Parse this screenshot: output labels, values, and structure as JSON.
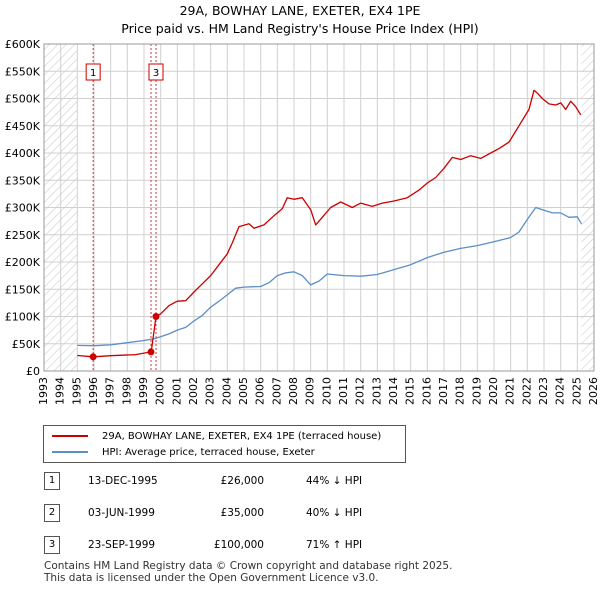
{
  "header": {
    "title": "29A, BOWHAY LANE, EXETER, EX4 1PE",
    "subtitle": "Price paid vs. HM Land Registry's House Price Index (HPI)"
  },
  "colors": {
    "property": "#cc0000",
    "hpi": "#5b8fc8",
    "marker_line": "#dd3333",
    "grid": "#d0d0d0",
    "hatch": "#cccccc"
  },
  "chart_data": {
    "type": "line",
    "xlim": [
      1993,
      2026
    ],
    "ylim": [
      0,
      600000
    ],
    "yticks": [
      0,
      50000,
      100000,
      150000,
      200000,
      250000,
      300000,
      350000,
      400000,
      450000,
      500000,
      550000,
      600000
    ],
    "ytick_labels": [
      "£0",
      "£50K",
      "£100K",
      "£150K",
      "£200K",
      "£250K",
      "£300K",
      "£350K",
      "£400K",
      "£450K",
      "£500K",
      "£550K",
      "£600K"
    ],
    "xticks": [
      1993,
      1994,
      1995,
      1996,
      1997,
      1998,
      1999,
      2000,
      2001,
      2002,
      2003,
      2004,
      2005,
      2006,
      2007,
      2008,
      2009,
      2010,
      2011,
      2012,
      2013,
      2014,
      2015,
      2016,
      2017,
      2018,
      2019,
      2020,
      2021,
      2022,
      2023,
      2024,
      2025,
      2026
    ],
    "xtick_labels": [
      "1993",
      "1994",
      "1995",
      "1996",
      "1997",
      "1998",
      "1999",
      "2000",
      "2001",
      "2002",
      "2003",
      "2004",
      "2005",
      "2006",
      "2007",
      "2008",
      "2009",
      "2010",
      "2011",
      "2012",
      "2013",
      "2014",
      "2015",
      "2016",
      "2017",
      "2018",
      "2019",
      "2020",
      "2021",
      "2022",
      "2023",
      "2024",
      "2025",
      "2026"
    ],
    "data_start": 1995.0,
    "data_end": 2025.25,
    "series": [
      {
        "name": "29A, BOWHAY LANE, EXETER, EX4 1PE (terraced house)",
        "color": "#cc0000",
        "points": [
          [
            1995.0,
            28500
          ],
          [
            1995.95,
            26000
          ],
          [
            1997.0,
            28000
          ],
          [
            1998.5,
            30000
          ],
          [
            1999.42,
            35000
          ],
          [
            1999.42,
            32000
          ],
          [
            1999.72,
            100000
          ],
          [
            2000.0,
            105000
          ],
          [
            2000.5,
            120000
          ],
          [
            2001.0,
            128000
          ],
          [
            2001.5,
            129000
          ],
          [
            2002.0,
            145000
          ],
          [
            2002.5,
            160000
          ],
          [
            2003.0,
            175000
          ],
          [
            2003.5,
            195000
          ],
          [
            2004.0,
            215000
          ],
          [
            2004.3,
            235000
          ],
          [
            2004.7,
            265000
          ],
          [
            2005.3,
            270000
          ],
          [
            2005.6,
            262000
          ],
          [
            2006.2,
            268000
          ],
          [
            2006.8,
            285000
          ],
          [
            2007.3,
            298000
          ],
          [
            2007.6,
            318000
          ],
          [
            2008.0,
            315000
          ],
          [
            2008.5,
            318000
          ],
          [
            2009.0,
            296000
          ],
          [
            2009.3,
            268000
          ],
          [
            2009.7,
            282000
          ],
          [
            2010.2,
            300000
          ],
          [
            2010.8,
            310000
          ],
          [
            2011.5,
            300000
          ],
          [
            2012.0,
            308000
          ],
          [
            2012.7,
            302000
          ],
          [
            2013.3,
            308000
          ],
          [
            2014.0,
            312000
          ],
          [
            2014.8,
            318000
          ],
          [
            2015.5,
            332000
          ],
          [
            2016.0,
            345000
          ],
          [
            2016.5,
            355000
          ],
          [
            2017.0,
            372000
          ],
          [
            2017.5,
            392000
          ],
          [
            2018.0,
            388000
          ],
          [
            2018.6,
            395000
          ],
          [
            2019.2,
            390000
          ],
          [
            2019.8,
            400000
          ],
          [
            2020.3,
            408000
          ],
          [
            2020.9,
            420000
          ],
          [
            2021.5,
            450000
          ],
          [
            2021.8,
            465000
          ],
          [
            2022.1,
            480000
          ],
          [
            2022.4,
            515000
          ],
          [
            2022.6,
            510000
          ],
          [
            2022.9,
            500000
          ],
          [
            2023.3,
            490000
          ],
          [
            2023.7,
            488000
          ],
          [
            2024.0,
            492000
          ],
          [
            2024.3,
            480000
          ],
          [
            2024.6,
            495000
          ],
          [
            2024.9,
            485000
          ],
          [
            2025.2,
            470000
          ]
        ]
      },
      {
        "name": "HPI: Average price, terraced house, Exeter",
        "color": "#5b8fc8",
        "points": [
          [
            1995.0,
            47000
          ],
          [
            1996.0,
            46500
          ],
          [
            1997.0,
            48000
          ],
          [
            1998.0,
            52000
          ],
          [
            1999.0,
            56000
          ],
          [
            1999.72,
            60000
          ],
          [
            2000.5,
            68000
          ],
          [
            2001.0,
            75000
          ],
          [
            2001.5,
            80000
          ],
          [
            2002.0,
            92000
          ],
          [
            2002.5,
            102000
          ],
          [
            2003.0,
            117000
          ],
          [
            2003.5,
            128000
          ],
          [
            2004.0,
            140000
          ],
          [
            2004.5,
            152000
          ],
          [
            2005.0,
            154000
          ],
          [
            2006.0,
            155000
          ],
          [
            2006.5,
            162000
          ],
          [
            2007.0,
            175000
          ],
          [
            2007.5,
            180000
          ],
          [
            2008.0,
            182000
          ],
          [
            2008.5,
            175000
          ],
          [
            2009.0,
            158000
          ],
          [
            2009.5,
            165000
          ],
          [
            2010.0,
            178000
          ],
          [
            2011.0,
            175000
          ],
          [
            2012.0,
            174000
          ],
          [
            2013.0,
            177000
          ],
          [
            2014.0,
            186000
          ],
          [
            2015.0,
            195000
          ],
          [
            2016.0,
            208000
          ],
          [
            2017.0,
            218000
          ],
          [
            2018.0,
            225000
          ],
          [
            2019.0,
            230000
          ],
          [
            2020.0,
            237000
          ],
          [
            2021.0,
            245000
          ],
          [
            2021.5,
            255000
          ],
          [
            2022.0,
            278000
          ],
          [
            2022.5,
            300000
          ],
          [
            2023.0,
            295000
          ],
          [
            2023.5,
            290000
          ],
          [
            2024.0,
            290000
          ],
          [
            2024.5,
            282000
          ],
          [
            2025.0,
            283000
          ],
          [
            2025.25,
            270000
          ]
        ]
      }
    ],
    "sales": [
      {
        "num": "1",
        "x": 1995.95,
        "price_value": 26000
      },
      {
        "num": "2",
        "x": 1999.42,
        "price_value": 35000
      },
      {
        "num": "3",
        "x": 1999.72,
        "price_value": 100000
      }
    ]
  },
  "legend": {
    "property": "29A, BOWHAY LANE, EXETER, EX4 1PE (terraced house)",
    "hpi": "HPI: Average price, terraced house, Exeter"
  },
  "sales_table": [
    {
      "num": "1",
      "date": "13-DEC-1995",
      "price": "£26,000",
      "hpi": "44% ↓ HPI"
    },
    {
      "num": "2",
      "date": "03-JUN-1999",
      "price": "£35,000",
      "hpi": "40% ↓ HPI"
    },
    {
      "num": "3",
      "date": "23-SEP-1999",
      "price": "£100,000",
      "hpi": "71% ↑ HPI"
    }
  ],
  "footer": {
    "line1": "Contains HM Land Registry data © Crown copyright and database right 2025.",
    "line2": "This data is licensed under the Open Government Licence v3.0."
  }
}
